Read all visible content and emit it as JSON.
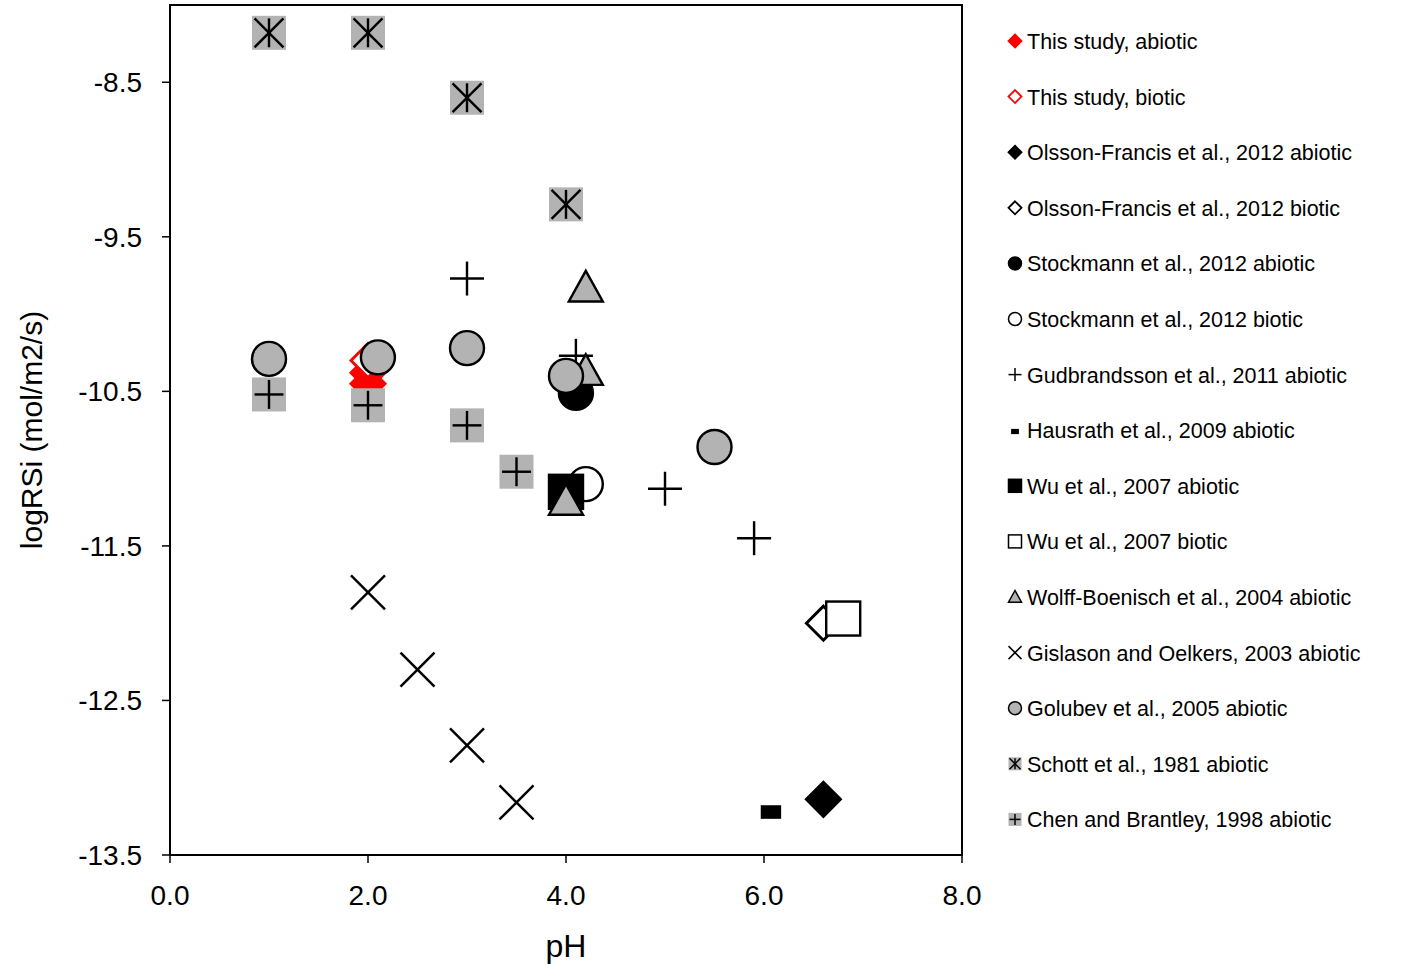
{
  "chart_data": {
    "type": "scatter",
    "x_label": "pH",
    "y_label": "logRSi (mol/m2/s)",
    "xlim": [
      0,
      8
    ],
    "ylim": [
      -13.5,
      -8.0
    ],
    "xticks": [
      {
        "value": 0,
        "label": "0.0"
      },
      {
        "value": 2,
        "label": "2.0"
      },
      {
        "value": 4,
        "label": "4.0"
      },
      {
        "value": 6,
        "label": "6.0"
      },
      {
        "value": 8,
        "label": "8.0"
      }
    ],
    "yticks": [
      -8.5,
      -9.5,
      -10.5,
      -11.5,
      -12.5,
      -13.5
    ],
    "grid": false,
    "legend": "right",
    "series": [
      {
        "name": "This study, abiotic",
        "color": "#ff0000",
        "marker": "diamond",
        "x": [
          2.0,
          2.0
        ],
        "values": [
          -10.38,
          -10.45
        ]
      },
      {
        "name": "This study, biotic",
        "color": "#ff0000",
        "marker": "diamond-open",
        "x": [
          2.0
        ],
        "values": [
          -10.3
        ]
      },
      {
        "name": "Olsson-Francis et al., 2012 abiotic",
        "color": "#000000",
        "marker": "diamond",
        "x": [
          6.6
        ],
        "values": [
          -13.14
        ]
      },
      {
        "name": "Olsson-Francis et al., 2012 biotic",
        "color": "#000000",
        "marker": "diamond-open",
        "x": [
          6.6
        ],
        "values": [
          -12.0
        ]
      },
      {
        "name": "Stockmann et al., 2012 abiotic",
        "color": "#000000",
        "marker": "circle",
        "x": [
          4.1
        ],
        "values": [
          -10.51
        ]
      },
      {
        "name": "Stockmann et al., 2012 biotic",
        "color": "#000000",
        "marker": "circle-open",
        "x": [
          4.2
        ],
        "values": [
          -11.1
        ]
      },
      {
        "name": "Gudbrandsson et al., 2011 abiotic",
        "color": "#000000",
        "marker": "plus",
        "x": [
          3.0,
          4.1,
          5.0,
          5.9
        ],
        "values": [
          -9.77,
          -10.27,
          -11.13,
          -11.45
        ]
      },
      {
        "name": "Hausrath et al., 2009 abiotic",
        "color": "#000000",
        "marker": "dash",
        "x": [
          6.07
        ],
        "values": [
          -13.2
        ]
      },
      {
        "name": "Wu et al., 2007 abiotic",
        "color": "#000000",
        "marker": "square",
        "x": [
          4.0
        ],
        "values": [
          -11.15
        ]
      },
      {
        "name": "Wu et al., 2007 biotic",
        "color": "#000000",
        "marker": "square-open",
        "x": [
          6.8
        ],
        "values": [
          -11.97
        ]
      },
      {
        "name": "Wolff-Boenisch et al., 2004 abiotic",
        "color": "#b3b3b3",
        "marker": "triangle",
        "x": [
          4.2,
          4.2,
          4.0
        ],
        "values": [
          -9.83,
          -10.37,
          -11.21
        ]
      },
      {
        "name": "Gislason and Oelkers, 2003 abiotic",
        "color": "#000000",
        "marker": "x",
        "x": [
          2.0,
          2.5,
          3.0,
          3.5
        ],
        "values": [
          -11.8,
          -12.3,
          -12.79,
          -13.16
        ]
      },
      {
        "name": "Golubev et al., 2005 abiotic",
        "color": "#b3b3b3",
        "marker": "circle",
        "x": [
          1.0,
          2.1,
          3.0,
          4.0,
          5.5
        ],
        "values": [
          -10.29,
          -10.28,
          -10.22,
          -10.4,
          -10.86
        ]
      },
      {
        "name": "Schott et al., 1981 abiotic",
        "color": "#b3b3b3",
        "marker": "asterisk-square",
        "x": [
          1.0,
          2.0,
          3.0,
          4.0
        ],
        "values": [
          -8.18,
          -8.18,
          -8.6,
          -9.29
        ]
      },
      {
        "name": "Chen and Brantley, 1998 abiotic",
        "color": "#b3b3b3",
        "marker": "plus-square",
        "x": [
          1.0,
          2.0,
          3.0,
          3.5
        ],
        "values": [
          -10.52,
          -10.59,
          -10.72,
          -11.02
        ]
      }
    ]
  }
}
